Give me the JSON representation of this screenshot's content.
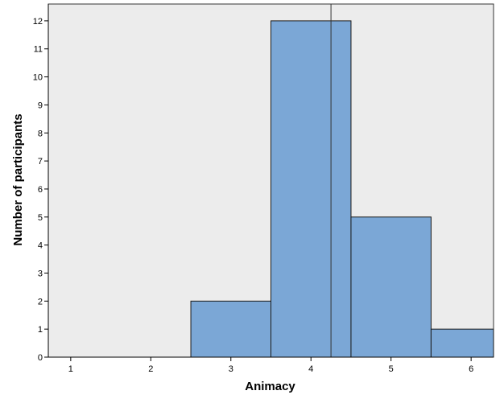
{
  "chart_data": {
    "type": "bar",
    "subtype": "histogram",
    "title": "",
    "xlabel": "Animacy",
    "ylabel": "Number of participants",
    "xlim": [
      0.72,
      6.28
    ],
    "ylim": [
      0,
      12.6
    ],
    "x_ticks": [
      1,
      2,
      3,
      4,
      5,
      6
    ],
    "y_ticks": [
      0,
      1,
      2,
      3,
      4,
      5,
      6,
      7,
      8,
      9,
      10,
      11,
      12
    ],
    "bins": [
      {
        "x0": 2.5,
        "x1": 3.5,
        "count": 2
      },
      {
        "x0": 3.5,
        "x1": 4.5,
        "count": 12
      },
      {
        "x0": 4.5,
        "x1": 5.5,
        "count": 5
      },
      {
        "x0": 5.5,
        "x1": 6.5,
        "count": 1
      }
    ],
    "reference_line_x": 4.25,
    "grid": false,
    "legend": "none",
    "colors": {
      "plot_background": "#ececec",
      "bar_fill": "#7ba7d6",
      "bar_stroke": "#1a1a1a",
      "axis": "#000000"
    }
  }
}
